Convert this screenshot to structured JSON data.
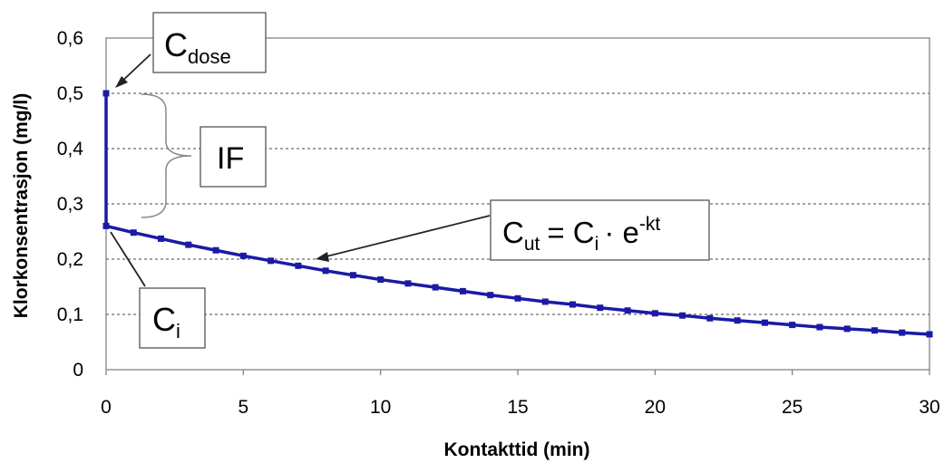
{
  "chart_data": {
    "type": "line",
    "xlabel": "Kontakttid (min)",
    "ylabel": "Klorkonsentrasjon (mg/l)",
    "xlim": [
      0,
      30
    ],
    "ylim": [
      0,
      0.6
    ],
    "x_ticks": [
      "0",
      "5",
      "10",
      "15",
      "20",
      "25",
      "30"
    ],
    "y_ticks": [
      "0",
      "0,1",
      "0,2",
      "0,3",
      "0,4",
      "0,5",
      "0,6"
    ],
    "grid": "horizontal dashed",
    "line_color": "#1a1aa6",
    "series": [
      {
        "x": [
          0,
          0,
          1,
          2,
          3,
          4,
          5,
          6,
          7,
          8,
          9,
          10,
          11,
          12,
          13,
          14,
          15,
          16,
          17,
          18,
          19,
          20,
          21,
          22,
          23,
          24,
          25,
          26,
          27,
          28,
          29,
          30
        ],
        "y": [
          0.5,
          0.26,
          0.248,
          0.237,
          0.226,
          0.216,
          0.206,
          0.197,
          0.188,
          0.179,
          0.171,
          0.163,
          0.156,
          0.149,
          0.142,
          0.135,
          0.129,
          0.123,
          0.118,
          0.112,
          0.107,
          0.102,
          0.098,
          0.093,
          0.089,
          0.085,
          0.081,
          0.077,
          0.074,
          0.071,
          0.067,
          0.064
        ]
      }
    ],
    "annotations": {
      "cdose": {
        "main": "C",
        "sub": "dose"
      },
      "if": {
        "text": "IF"
      },
      "ci": {
        "main": "C",
        "sub": "i"
      },
      "cut": {
        "c": "C",
        "ut": "ut",
        "eq": "= C",
        "i": "i",
        "dot": "· e",
        "exp": "-kt"
      }
    }
  }
}
